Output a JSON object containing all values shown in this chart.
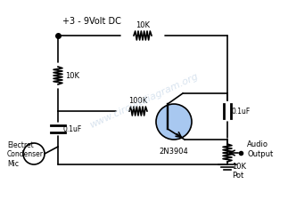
{
  "title": "+3 - 9Volt DC",
  "background_color": "#ffffff",
  "line_color": "#000000",
  "watermark": "www.circuitdiagram.org",
  "watermark_color": "#c8d8e8",
  "component_labels": {
    "r1": "10K",
    "r2": "10K",
    "r3": "100K",
    "c1": "0.1uF",
    "c2": "0.1uF",
    "transistor": "2N3904",
    "pot": "10K\nPot",
    "mic_label": "Electret\nCondenser\nMic",
    "output_label": "Audio\nOutput"
  },
  "figsize": [
    3.23,
    2.26
  ],
  "dpi": 100
}
